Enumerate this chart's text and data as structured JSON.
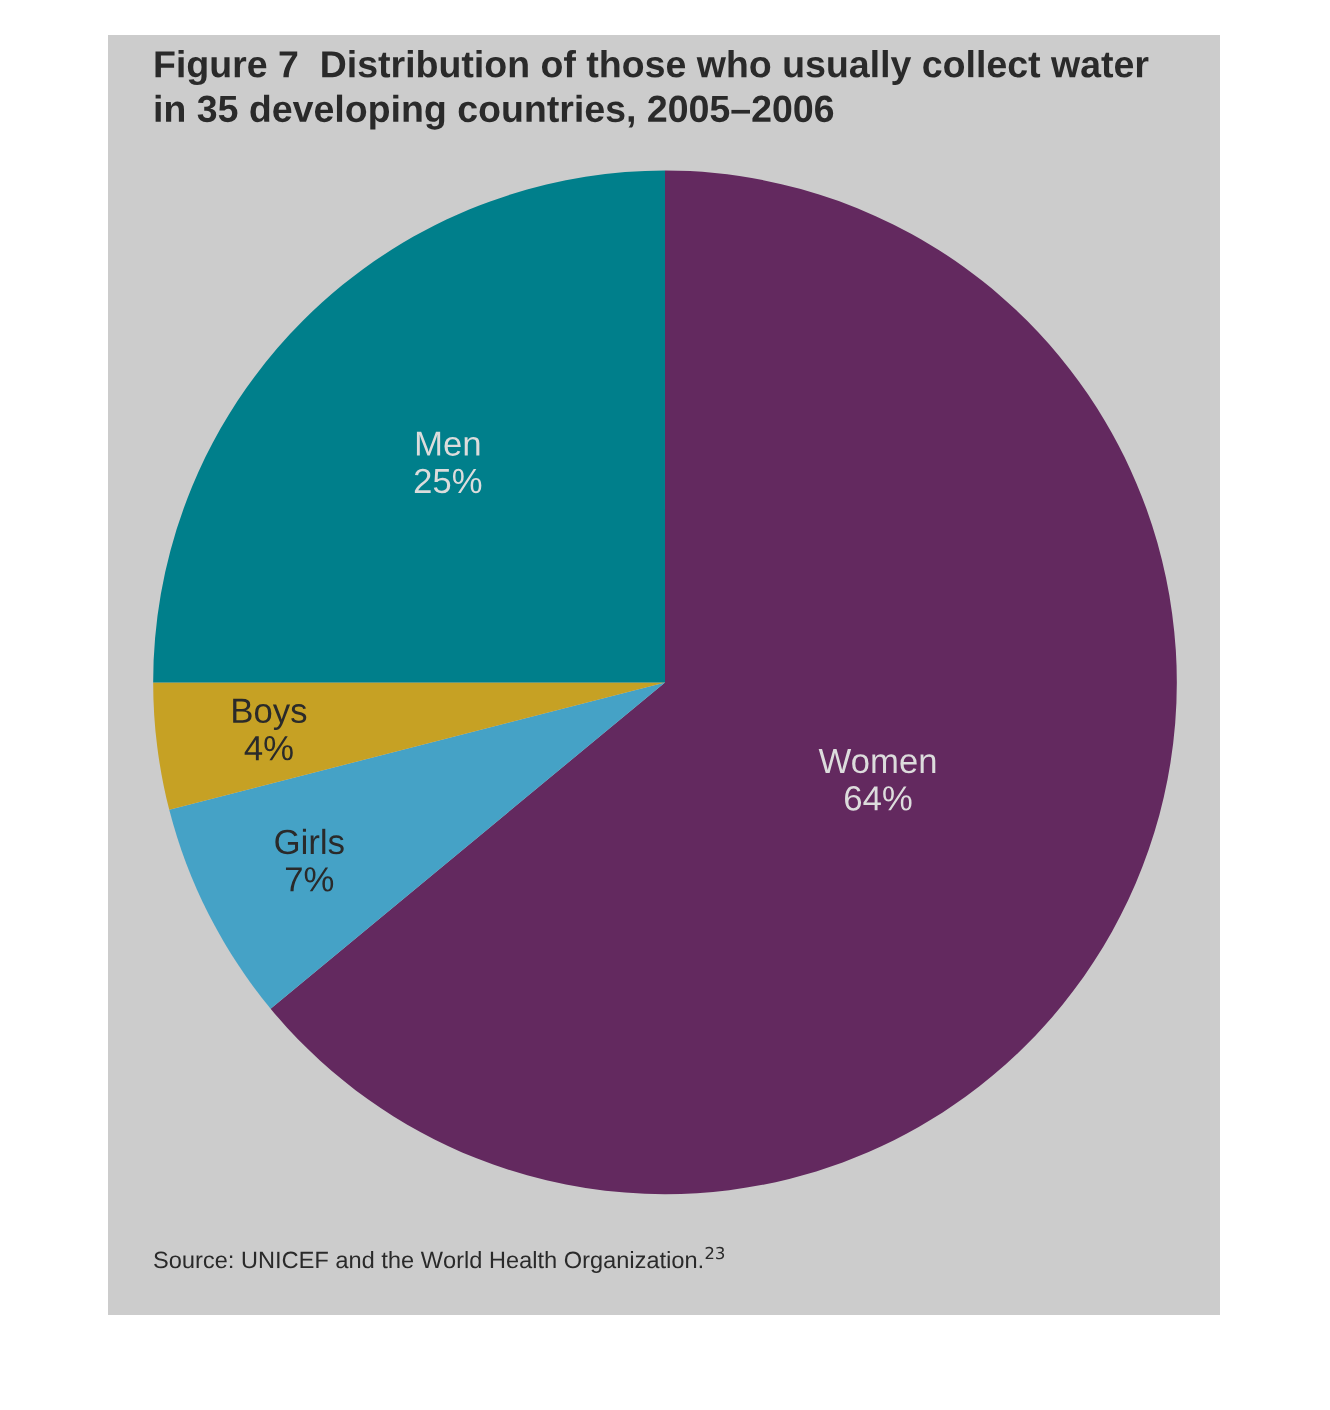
{
  "chart_data": {
    "type": "pie",
    "title": "Figure 7  Distribution of those who usually collect water\nin 35 developing countries, 2005–2006",
    "categories": [
      "Women",
      "Girls",
      "Boys",
      "Men"
    ],
    "values": [
      64,
      7,
      4,
      25
    ],
    "colors": [
      "#63295f",
      "#45a2c6",
      "#c6a124",
      "#007f8b"
    ],
    "value_labels": [
      "64%",
      "7%",
      "4%",
      "25%"
    ],
    "annotations": [
      "Source: UNICEF and the World Health Organization.$^{23}$"
    ]
  }
}
